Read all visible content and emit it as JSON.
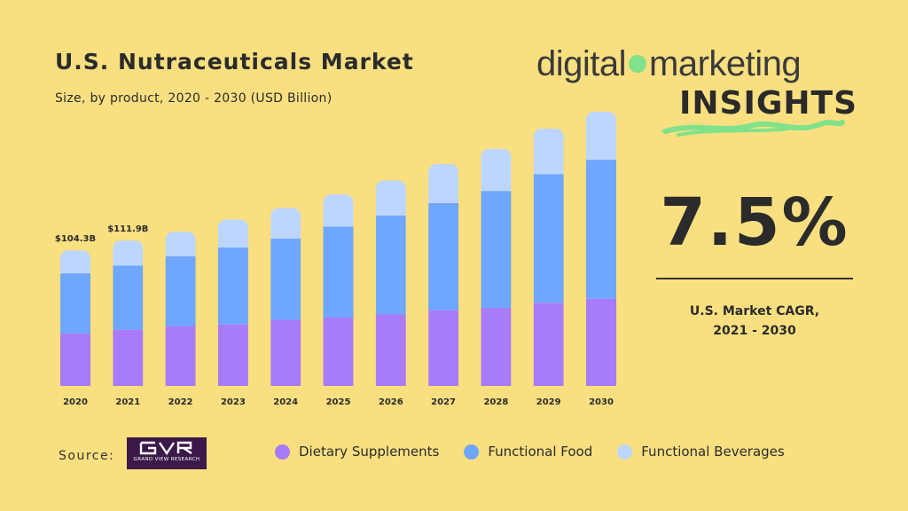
{
  "header": {
    "title": "U.S. Nutraceuticals Market",
    "subtitle": "Size, by product, 2020 - 2030 (USD Billion)"
  },
  "brand": {
    "word1": "digital",
    "word2": "marketing",
    "word3": "INSIGHTS",
    "dot_color": "#80e28a"
  },
  "cagr": {
    "value": "7.5%",
    "label_line1": "U.S. Market CAGR,",
    "label_line2": "2021 - 2030"
  },
  "source": {
    "label": "Source:",
    "logo_text": "GRAND VIEW RESEARCH",
    "logo_mark": "GVR"
  },
  "colors": {
    "background": "#f9df80",
    "dietary": "#a87bfa",
    "functional_food": "#6fa6ff",
    "functional_beverages": "#bdd6ff"
  },
  "chart_data": {
    "type": "bar",
    "stacked": true,
    "categories": [
      "2020",
      "2021",
      "2022",
      "2023",
      "2024",
      "2025",
      "2026",
      "2027",
      "2028",
      "2029",
      "2030"
    ],
    "series": [
      {
        "name": "Dietary Supplements",
        "values": [
          40.2,
          43.1,
          46.0,
          47.2,
          50.8,
          52.6,
          55.0,
          58.2,
          60.0,
          64.0,
          67.0
        ]
      },
      {
        "name": "Functional Food",
        "values": [
          46.4,
          49.5,
          53.8,
          59.3,
          62.5,
          70.0,
          76.2,
          82.5,
          90.0,
          99.0,
          107.0
        ]
      },
      {
        "name": "Functional Beverages",
        "values": [
          17.7,
          19.3,
          18.8,
          21.6,
          23.6,
          24.8,
          27.0,
          30.0,
          32.5,
          35.0,
          37.0
        ]
      }
    ],
    "data_labels": [
      "$104.3B",
      "$111.9B"
    ],
    "legend_position": "bottom",
    "grid": false
  }
}
